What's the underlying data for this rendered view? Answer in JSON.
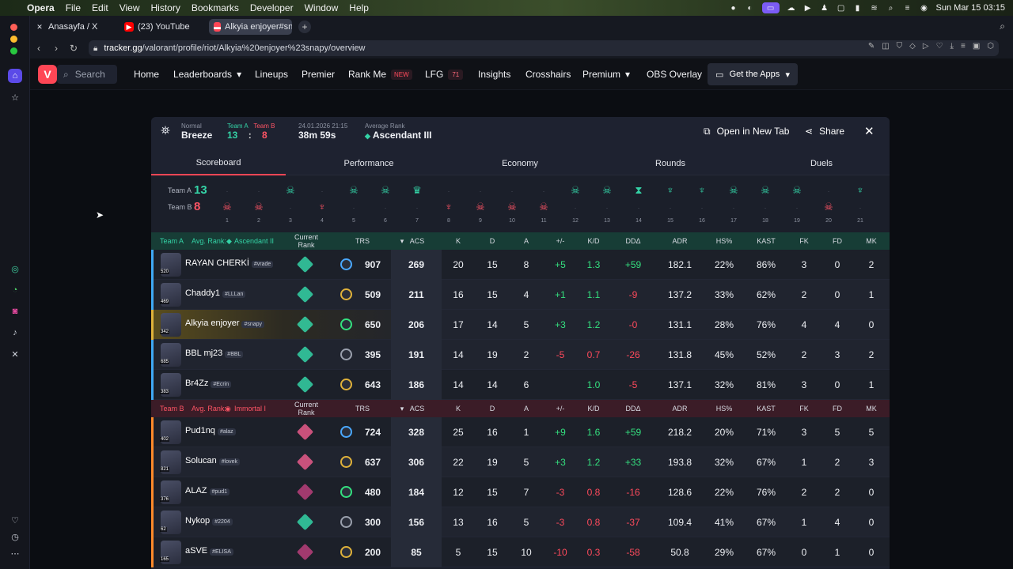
{
  "menubar": {
    "app": "Opera",
    "items": [
      "File",
      "Edit",
      "View",
      "History",
      "Bookmarks",
      "Developer",
      "Window",
      "Help"
    ],
    "clock": "Sun Mar 15  03:15"
  },
  "tabs": [
    {
      "label": "Anasayfa / X",
      "icon": "x-logo-icon"
    },
    {
      "label": "(23) YouTube",
      "icon": "youtube-icon"
    },
    {
      "label": "Alkyia enjoyer#snapy's",
      "icon": "tracker-icon"
    }
  ],
  "url": {
    "host": "tracker.gg",
    "path": "/valorant/profile/riot/Alkyia%20enjoyer%23snapy/overview"
  },
  "nav": {
    "search": "Search",
    "items": [
      "Home",
      "Leaderboards",
      "Lineups",
      "Premier",
      "Rank Me",
      "LFG",
      "Insights",
      "Crosshairs",
      "Premium",
      "OBS Overlay"
    ],
    "rankme_badge": "NEW",
    "lfg_badge": "71",
    "apps": "Get the Apps"
  },
  "match": {
    "mode": "Normal",
    "map": "Breeze",
    "team_a": "Team A",
    "team_b": "Team B",
    "score_a": "13",
    "score_b": "8",
    "sep": ":",
    "date": "24.01.2026 21:15",
    "duration": "38m 59s",
    "avg_rank_label": "Average Rank",
    "avg_rank": "Ascendant III",
    "open_tab": "Open in New Tab",
    "share": "Share"
  },
  "subtabs": [
    "Scoreboard",
    "Performance",
    "Economy",
    "Rounds",
    "Duels"
  ],
  "rounds": {
    "label_a": "Team A",
    "label_b": "Team B",
    "score_a": "13",
    "score_b": "8",
    "numbers": [
      "1",
      "2",
      "3",
      "4",
      "5",
      "6",
      "7",
      "8",
      "9",
      "10",
      "11",
      "12",
      "13",
      "14",
      "15",
      "16",
      "17",
      "18",
      "19",
      "20",
      "21"
    ],
    "winners": [
      "B",
      "B",
      "A",
      "B",
      "A",
      "A",
      "A",
      "B",
      "B",
      "B",
      "B",
      "A",
      "A",
      "A",
      "A",
      "A",
      "A",
      "A",
      "A",
      "B",
      "A"
    ],
    "icons": [
      "skull",
      "skull",
      "skull",
      "spike",
      "skull",
      "skull",
      "crown",
      "spike",
      "skull",
      "skull",
      "skull",
      "skull",
      "skull",
      "hourglass",
      "spike",
      "spike",
      "skull",
      "skull",
      "skull",
      "skull",
      "spike"
    ]
  },
  "columns": [
    "Current Rank",
    "TRS",
    "ACS",
    "K",
    "D",
    "A",
    "+/-",
    "K/D",
    "DDΔ",
    "ADR",
    "HS%",
    "KAST",
    "FK",
    "FD",
    "MK"
  ],
  "team_a_header": {
    "team": "Team A",
    "avg": "Avg. Rank:",
    "rank": "Ascendant II"
  },
  "team_b_header": {
    "team": "Team B",
    "avg": "Avg. Rank:",
    "rank": "Immortal I"
  },
  "team_a_players": [
    {
      "name": "RAYAN CHERKİ",
      "tag": "#vrade",
      "level": "520",
      "trs": "907",
      "acs": "269",
      "k": "20",
      "d": "15",
      "a": "8",
      "pm": "+5",
      "kd": "1.3",
      "dd": "+59",
      "adr": "182.1",
      "hs": "22%",
      "kast": "86%",
      "fk": "3",
      "fd": "0",
      "mk": "2"
    },
    {
      "name": "Chaddy1",
      "tag": "#LLLan",
      "level": "469",
      "trs": "509",
      "acs": "211",
      "k": "16",
      "d": "15",
      "a": "4",
      "pm": "+1",
      "kd": "1.1",
      "dd": "-9",
      "adr": "137.2",
      "hs": "33%",
      "kast": "62%",
      "fk": "2",
      "fd": "0",
      "mk": "1"
    },
    {
      "name": "Alkyia enjoyer",
      "tag": "#snapy",
      "level": "342",
      "trs": "650",
      "acs": "206",
      "k": "17",
      "d": "14",
      "a": "5",
      "pm": "+3",
      "kd": "1.2",
      "dd": "-0",
      "adr": "131.1",
      "hs": "28%",
      "kast": "76%",
      "fk": "4",
      "fd": "4",
      "mk": "0"
    },
    {
      "name": "BBL mj23",
      "tag": "#BBL",
      "level": "685",
      "trs": "395",
      "acs": "191",
      "k": "14",
      "d": "19",
      "a": "2",
      "pm": "-5",
      "kd": "0.7",
      "dd": "-26",
      "adr": "131.8",
      "hs": "45%",
      "kast": "52%",
      "fk": "2",
      "fd": "3",
      "mk": "2"
    },
    {
      "name": "Br4Zz",
      "tag": "#Ecrin",
      "level": "383",
      "trs": "643",
      "acs": "186",
      "k": "14",
      "d": "14",
      "a": "6",
      "pm": "",
      "kd": "1.0",
      "dd": "-5",
      "adr": "137.1",
      "hs": "32%",
      "kast": "81%",
      "fk": "3",
      "fd": "0",
      "mk": "1"
    }
  ],
  "team_b_players": [
    {
      "name": "Pud1nq",
      "tag": "#alaz",
      "level": "402",
      "trs": "724",
      "acs": "328",
      "k": "25",
      "d": "16",
      "a": "1",
      "pm": "+9",
      "kd": "1.6",
      "dd": "+59",
      "adr": "218.2",
      "hs": "20%",
      "kast": "71%",
      "fk": "3",
      "fd": "5",
      "mk": "5"
    },
    {
      "name": "Solucan",
      "tag": "#lovek",
      "level": "821",
      "trs": "637",
      "acs": "306",
      "k": "22",
      "d": "19",
      "a": "5",
      "pm": "+3",
      "kd": "1.2",
      "dd": "+33",
      "adr": "193.8",
      "hs": "32%",
      "kast": "67%",
      "fk": "1",
      "fd": "2",
      "mk": "3"
    },
    {
      "name": "ALAZ",
      "tag": "#pud1",
      "level": "376",
      "trs": "480",
      "acs": "184",
      "k": "12",
      "d": "15",
      "a": "7",
      "pm": "-3",
      "kd": "0.8",
      "dd": "-16",
      "adr": "128.6",
      "hs": "22%",
      "kast": "76%",
      "fk": "2",
      "fd": "2",
      "mk": "0"
    },
    {
      "name": "Nykop",
      "tag": "#2204",
      "level": "62",
      "trs": "300",
      "acs": "156",
      "k": "13",
      "d": "16",
      "a": "5",
      "pm": "-3",
      "kd": "0.8",
      "dd": "-37",
      "adr": "109.4",
      "hs": "41%",
      "kast": "67%",
      "fk": "1",
      "fd": "4",
      "mk": "0"
    },
    {
      "name": "aSVE",
      "tag": "#ELISA",
      "level": "165",
      "trs": "200",
      "acs": "85",
      "k": "5",
      "d": "15",
      "a": "10",
      "pm": "-10",
      "kd": "0.3",
      "dd": "-58",
      "adr": "50.8",
      "hs": "29%",
      "kast": "67%",
      "fk": "0",
      "fd": "1",
      "mk": "0"
    }
  ],
  "colors": {
    "team_a": "#34d3a6",
    "team_b": "#ff5465",
    "positive": "#34e07f",
    "negative": "#ff4a5c",
    "accent": "#ff4655"
  }
}
